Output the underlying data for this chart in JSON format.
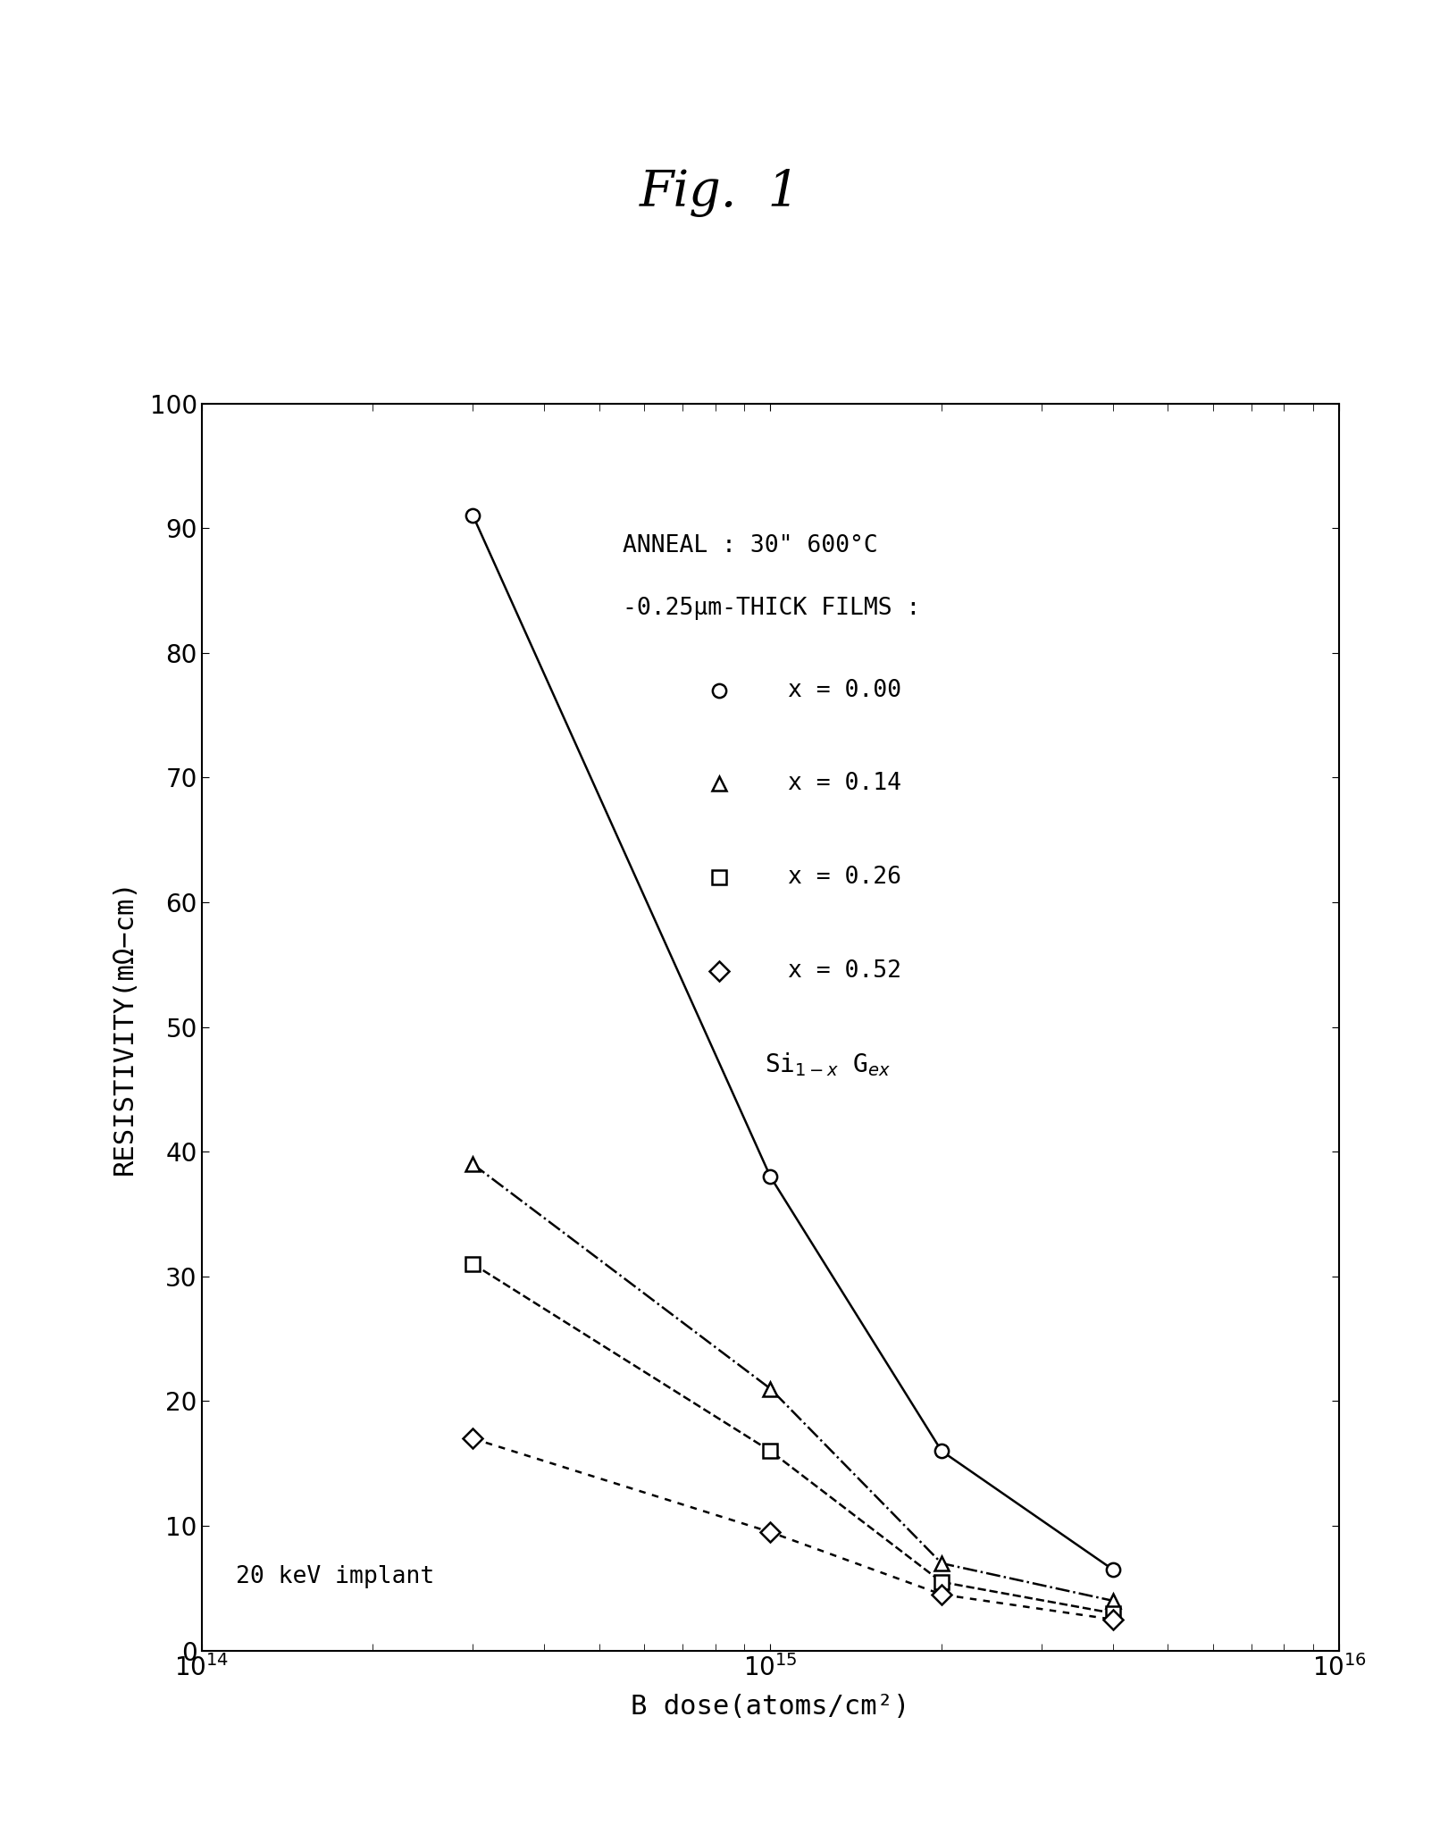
{
  "title": "Fig.  1",
  "xlabel": "B dose(atoms/cm²)",
  "ylabel": "RESISTIVITY(mΩ−cm)",
  "anneal_text": "ANNEAL : 30\" 600°C",
  "film_text": "-0.25μm-THICK FILMS :",
  "bottom_text": "20 keV implant",
  "xlim_log": [
    100000000000000.0,
    1e+16
  ],
  "ylim": [
    0,
    100
  ],
  "series": [
    {
      "label": "x = 0.00",
      "marker": "o",
      "linestyle": "-",
      "x": [
        300000000000000.0,
        1000000000000000.0,
        2000000000000000.0,
        4000000000000000.0
      ],
      "y": [
        91,
        38,
        16,
        6.5
      ]
    },
    {
      "label": "x = 0.14",
      "marker": "^",
      "linestyle": "-.",
      "x": [
        300000000000000.0,
        1000000000000000.0,
        2000000000000000.0,
        4000000000000000.0
      ],
      "y": [
        39,
        21,
        7,
        4
      ]
    },
    {
      "label": "x = 0.26",
      "marker": "s",
      "linestyle": "--",
      "x": [
        300000000000000.0,
        1000000000000000.0,
        2000000000000000.0,
        4000000000000000.0
      ],
      "y": [
        31,
        16,
        5.5,
        3
      ]
    },
    {
      "label": "x = 0.52",
      "marker": "D",
      "linestyle": ":",
      "x": [
        300000000000000.0,
        1000000000000000.0,
        2000000000000000.0,
        4000000000000000.0
      ],
      "y": [
        17,
        9.5,
        4.5,
        2.5
      ]
    }
  ],
  "background_color": "#ffffff",
  "line_color": "#000000",
  "title_fontsize": 40,
  "label_fontsize": 22,
  "tick_fontsize": 20,
  "annotation_fontsize": 19
}
